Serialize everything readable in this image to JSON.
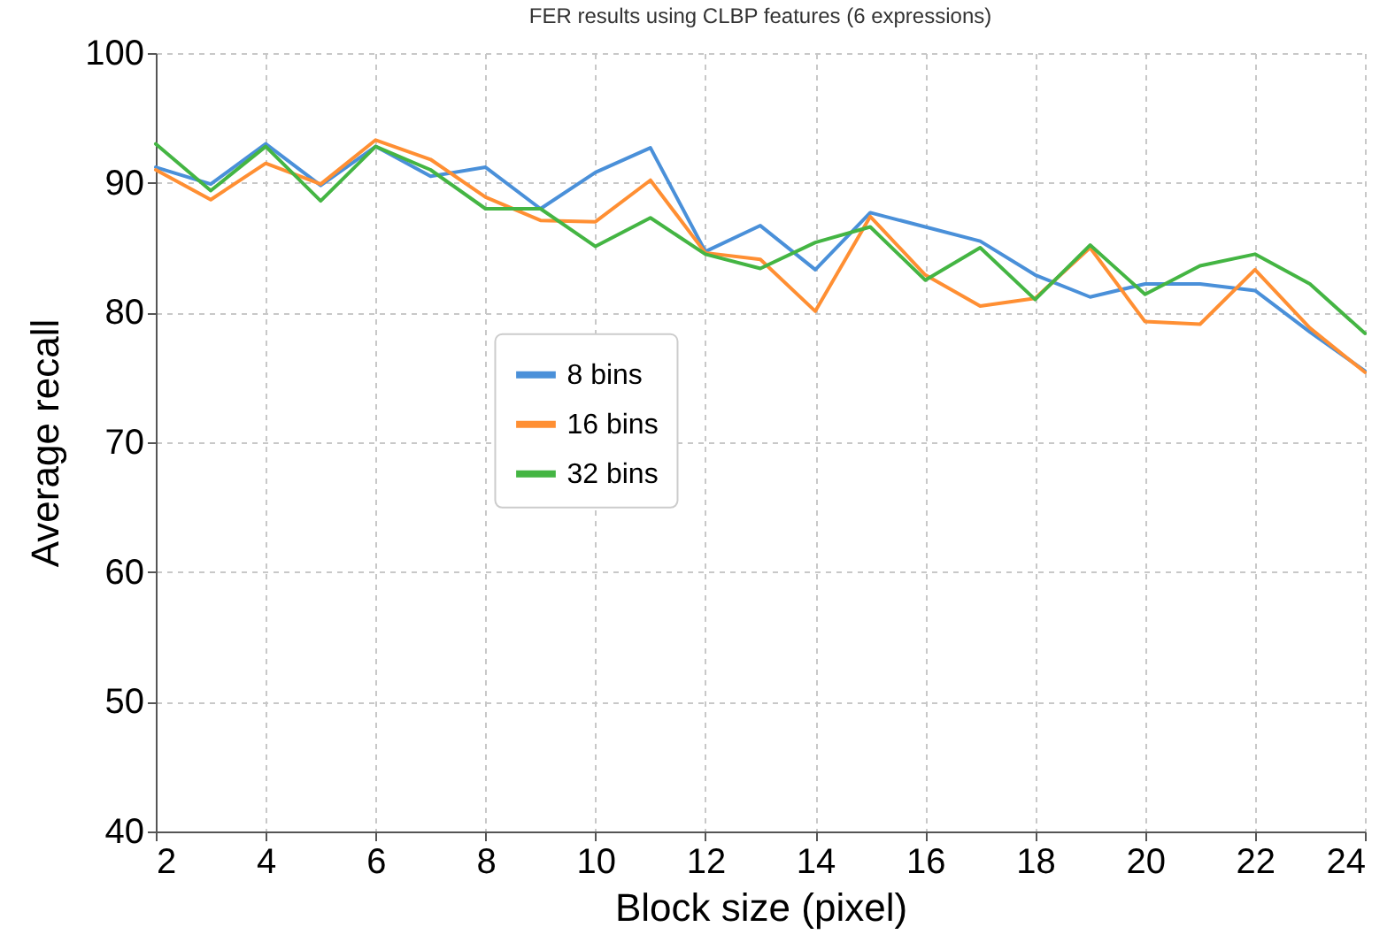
{
  "chart_data": {
    "type": "line",
    "title": "FER results using CLBP features (6 expressions)",
    "xlabel": "Block size (pixel)",
    "ylabel": "Average recall",
    "x": [
      2,
      3,
      4,
      5,
      6,
      7,
      8,
      9,
      10,
      11,
      12,
      13,
      14,
      15,
      16,
      17,
      18,
      19,
      20,
      21,
      22,
      23,
      24
    ],
    "series": [
      {
        "name": "8 bins",
        "color": "#4a90d9",
        "values": [
          91.2,
          89.9,
          93.0,
          89.8,
          92.8,
          90.5,
          91.2,
          88.0,
          90.8,
          92.7,
          84.7,
          86.7,
          83.3,
          87.7,
          86.6,
          85.5,
          82.9,
          81.2,
          82.2,
          82.2,
          81.7,
          78.5,
          75.5
        ]
      },
      {
        "name": "16 bins",
        "color": "#ff8f33",
        "values": [
          91.0,
          88.7,
          91.5,
          89.9,
          93.3,
          91.8,
          88.9,
          87.1,
          87.0,
          90.2,
          84.6,
          84.1,
          80.1,
          87.4,
          82.9,
          80.5,
          81.1,
          85.0,
          79.3,
          79.1,
          83.3,
          78.8,
          75.4
        ]
      },
      {
        "name": "32 bins",
        "color": "#44b543",
        "values": [
          93.0,
          89.4,
          92.8,
          88.6,
          92.8,
          91.0,
          88.0,
          88.0,
          85.1,
          87.3,
          84.5,
          83.4,
          85.4,
          86.6,
          82.5,
          85.0,
          81.0,
          85.2,
          81.4,
          83.6,
          84.5,
          82.2,
          78.4
        ]
      }
    ],
    "xlim": [
      2,
      24
    ],
    "xticks": [
      2,
      4,
      6,
      8,
      10,
      12,
      14,
      16,
      18,
      20,
      22,
      24
    ],
    "ylim": [
      40,
      100
    ],
    "yticks": [
      40,
      50,
      60,
      70,
      80,
      90,
      100
    ],
    "grid": true,
    "legend": "left",
    "line_style": "solid",
    "marker": "none"
  }
}
